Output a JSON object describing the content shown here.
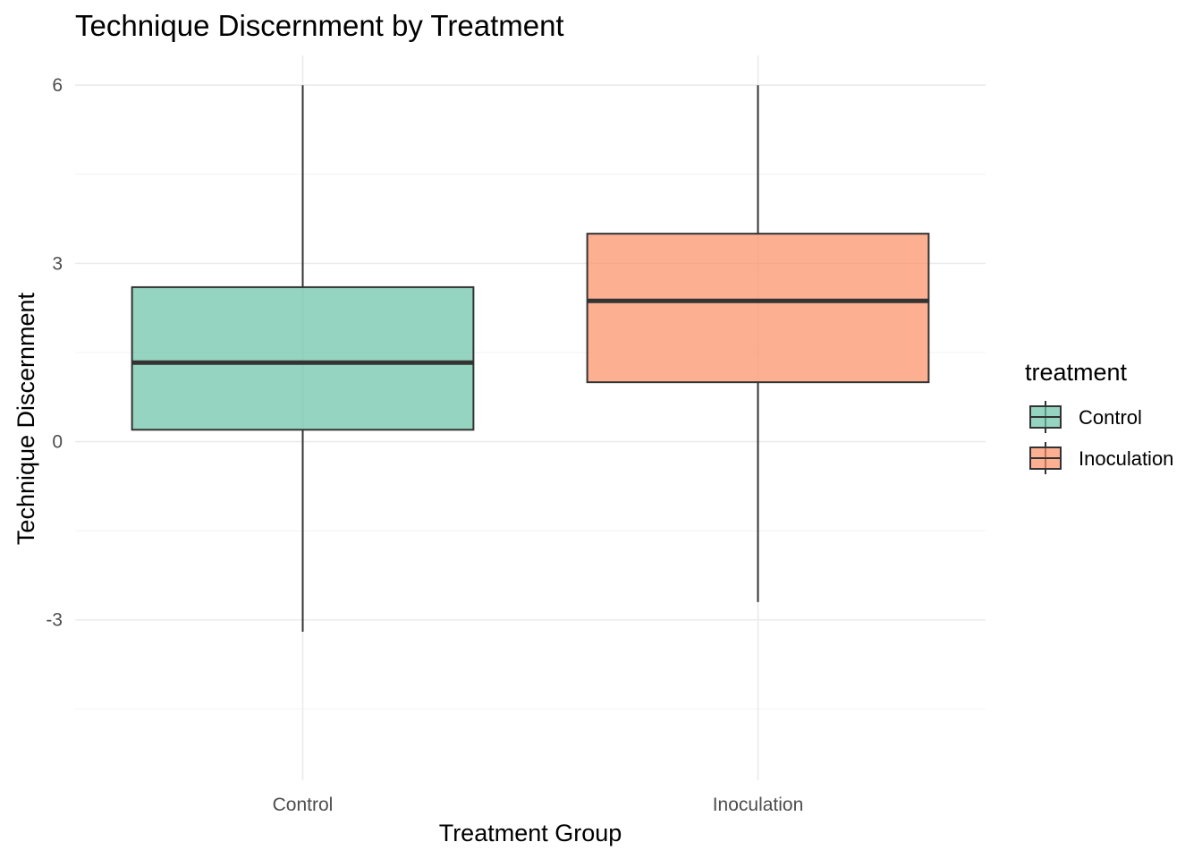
{
  "chart_data": {
    "type": "boxplot",
    "title": "Technique Discernment by Treatment",
    "xlabel": "Treatment Group",
    "ylabel": "Technique Discernment",
    "categories": [
      "Control",
      "Inoculation"
    ],
    "ylim": [
      -5.7,
      6.5
    ],
    "yticks": [
      -3,
      0,
      3,
      6
    ],
    "ytick_labels": [
      "-3",
      "0",
      "3",
      "6"
    ],
    "grid": true,
    "legend": {
      "title": "treatment",
      "position": "right",
      "entries": [
        "Control",
        "Inoculation"
      ]
    },
    "series": [
      {
        "name": "Control",
        "color": "#66c2a5",
        "whisker_low": -3.2,
        "q1": 0.2,
        "median": 1.33,
        "q3": 2.6,
        "whisker_high": 6.0
      },
      {
        "name": "Inoculation",
        "color": "#fc8d62",
        "whisker_low": -2.7,
        "q1": 1.0,
        "median": 2.37,
        "q3": 3.5,
        "whisker_high": 6.0
      }
    ]
  }
}
